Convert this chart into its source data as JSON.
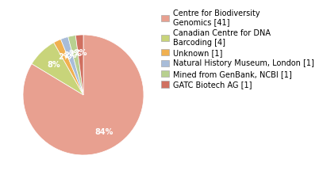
{
  "labels": [
    "Centre for Biodiversity\nGenomics [41]",
    "Canadian Centre for DNA\nBarcoding [4]",
    "Unknown [1]",
    "Natural History Museum, London [1]",
    "Mined from GenBank, NCBI [1]",
    "GATC Biotech AG [1]"
  ],
  "values": [
    41,
    4,
    1,
    1,
    1,
    1
  ],
  "colors": [
    "#e8a090",
    "#c8d47a",
    "#f0b050",
    "#a8bcd8",
    "#b8d090",
    "#d07060"
  ],
  "background_color": "#ffffff",
  "text_color": "#000000",
  "legend_fontsize": 7.0,
  "autopct_fontsize": 7
}
